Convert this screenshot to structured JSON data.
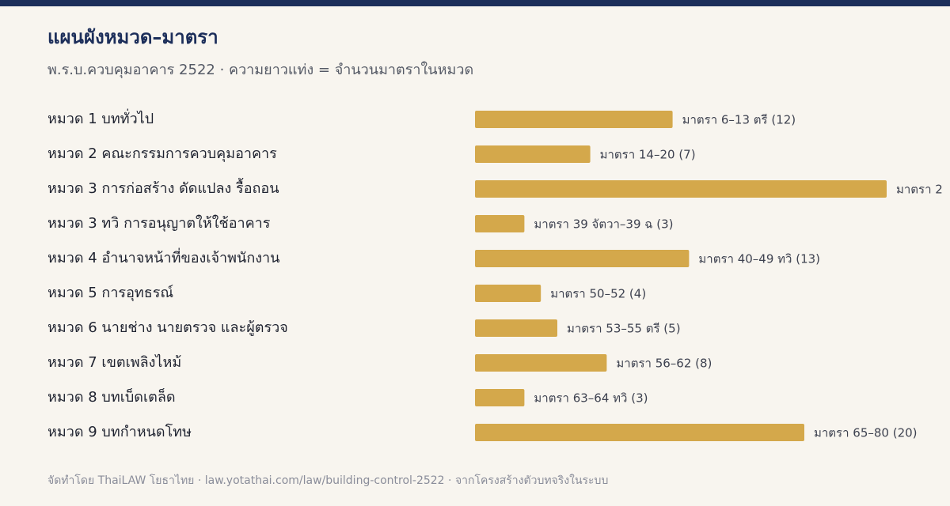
{
  "chart_data": {
    "type": "bar",
    "orientation": "horizontal",
    "title": "แผนผังหมวด–มาตรา",
    "subtitle": "พ.ร.บ.ควบคุมอาคาร 2522 · ความยาวแท่ง = จำนวนมาตราในหมวด",
    "categories": [
      "หมวด 1 บททั่วไป",
      "หมวด 2 คณะกรรมการควบคุมอาคาร",
      "หมวด 3 การก่อสร้าง ดัดแปลง รื้อถอน",
      "หมวด 3 ทวิ การอนุญาตให้ใช้อาคาร",
      "หมวด 4 อำนาจหน้าที่ของเจ้าพนักงาน",
      "หมวด 5 การอุทธรณ์",
      "หมวด 6 นายช่าง นายตรวจ และผู้ตรวจ",
      "หมวด 7 เขตเพลิงไหม้",
      "หมวด 8 บทเบ็ดเตล็ด",
      "หมวด 9 บทกำหนดโทษ"
    ],
    "values": [
      12,
      7,
      25,
      3,
      13,
      4,
      5,
      8,
      3,
      20
    ],
    "value_labels": [
      "มาตรา 6–13 ตรี (12)",
      "มาตรา 14–20 (7)",
      "มาตรา 2",
      "มาตรา 39 จัตวา–39 ฉ (3)",
      "มาตรา 40–49 ทวิ (13)",
      "มาตรา 50–52 (4)",
      "มาตรา 53–55 ตรี (5)",
      "มาตรา 56–62 (8)",
      "มาตรา 63–64 ทวิ (3)",
      "มาตรา 65–80 (20)"
    ],
    "color": "#d4a84b",
    "footer": "จัดทำโดย ThaiLAW โยธาไทย · law.yotathai.com/law/building-control-2522 · จากโครงสร้างตัวบทจริงในระบบ"
  }
}
